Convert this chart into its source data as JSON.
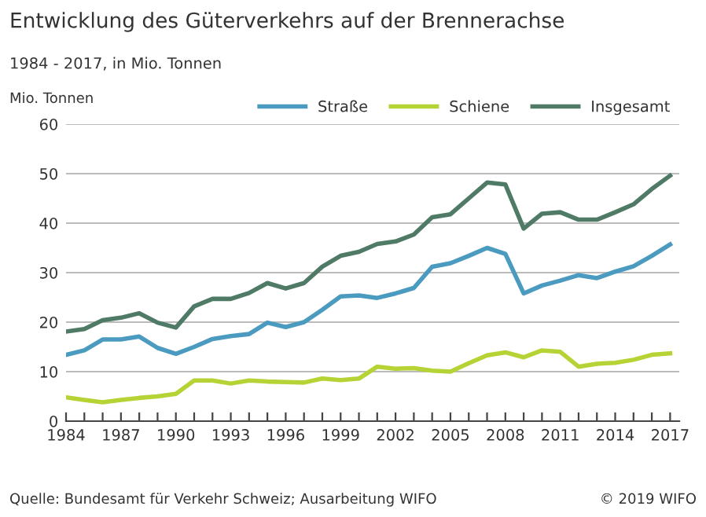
{
  "chart_data": {
    "type": "line",
    "title": "Entwicklung des Güterverkehrs auf der Brennerachse",
    "subtitle": "1984 - 2017, in Mio. Tonnen",
    "ylabel": "Mio. Tonnen",
    "x": [
      1984,
      1985,
      1986,
      1987,
      1988,
      1989,
      1990,
      1991,
      1992,
      1993,
      1994,
      1995,
      1996,
      1997,
      1998,
      1999,
      2000,
      2001,
      2002,
      2003,
      2004,
      2005,
      2006,
      2007,
      2008,
      2009,
      2010,
      2011,
      2012,
      2013,
      2014,
      2015,
      2016,
      2017
    ],
    "series": [
      {
        "name": "Straße",
        "color": "#4a9bbf",
        "values": [
          13.4,
          14.3,
          16.5,
          16.5,
          17.1,
          14.8,
          13.6,
          15.0,
          16.6,
          17.2,
          17.6,
          19.9,
          19.0,
          20.0,
          22.5,
          25.2,
          25.4,
          24.9,
          25.8,
          26.9,
          31.2,
          31.9,
          33.4,
          35.0,
          33.8,
          25.8,
          27.4,
          28.4,
          29.5,
          28.9,
          30.2,
          31.3,
          33.4,
          35.7
        ]
      },
      {
        "name": "Schiene",
        "color": "#b5d334",
        "values": [
          4.8,
          4.3,
          3.8,
          4.3,
          4.7,
          5.0,
          5.5,
          8.2,
          8.2,
          7.6,
          8.2,
          8.0,
          7.9,
          7.8,
          8.6,
          8.3,
          8.6,
          11.0,
          10.6,
          10.7,
          10.2,
          10.0,
          11.7,
          13.3,
          13.9,
          12.9,
          14.3,
          14.0,
          11.0,
          11.6,
          11.8,
          12.4,
          13.4,
          13.7
        ]
      },
      {
        "name": "Insgesamt",
        "color": "#4f7a66",
        "values": [
          18.1,
          18.6,
          20.4,
          20.9,
          21.8,
          19.9,
          18.9,
          23.2,
          24.7,
          24.7,
          25.9,
          27.9,
          26.8,
          27.9,
          31.2,
          33.4,
          34.2,
          35.8,
          36.3,
          37.7,
          41.2,
          41.8,
          45.0,
          48.2,
          47.8,
          38.9,
          41.9,
          42.2,
          40.7,
          40.7,
          42.2,
          43.8,
          46.9,
          49.6
        ]
      }
    ],
    "xlim": [
      1984,
      2017.5
    ],
    "xticks": [
      1984,
      {
        "value": 1985,
        "label": null
      },
      {
        "value": 1986,
        "label": null
      },
      1987,
      {
        "value": 1988,
        "label": null
      },
      {
        "value": 1989,
        "label": null
      },
      1990,
      {
        "value": 1991,
        "label": null
      },
      {
        "value": 1992,
        "label": null
      },
      1993,
      {
        "value": 1994,
        "label": null
      },
      {
        "value": 1995,
        "label": null
      },
      1996,
      {
        "value": 1997,
        "label": null
      },
      {
        "value": 1998,
        "label": null
      },
      1999,
      {
        "value": 2000,
        "label": null
      },
      {
        "value": 2001,
        "label": null
      },
      2002,
      {
        "value": 2003,
        "label": null
      },
      {
        "value": 2004,
        "label": null
      },
      2005,
      {
        "value": 2006,
        "label": null
      },
      {
        "value": 2007,
        "label": null
      },
      2008,
      {
        "value": 2009,
        "label": null
      },
      {
        "value": 2010,
        "label": null
      },
      2011,
      {
        "value": 2012,
        "label": null
      },
      {
        "value": 2013,
        "label": null
      },
      2014,
      {
        "value": 2015,
        "label": null
      },
      {
        "value": 2016,
        "label": null
      },
      2017
    ],
    "ylim": [
      0,
      60
    ],
    "yticks": [
      0,
      10,
      20,
      30,
      40,
      50,
      60
    ],
    "grid": "y",
    "legend": "top right",
    "marker": "none",
    "line_style": "solid",
    "annotations": [
      "Quelle: Bundesamt für Verkehr Schweiz; Ausarbeitung WIFO",
      "© 2019 WIFO"
    ]
  }
}
